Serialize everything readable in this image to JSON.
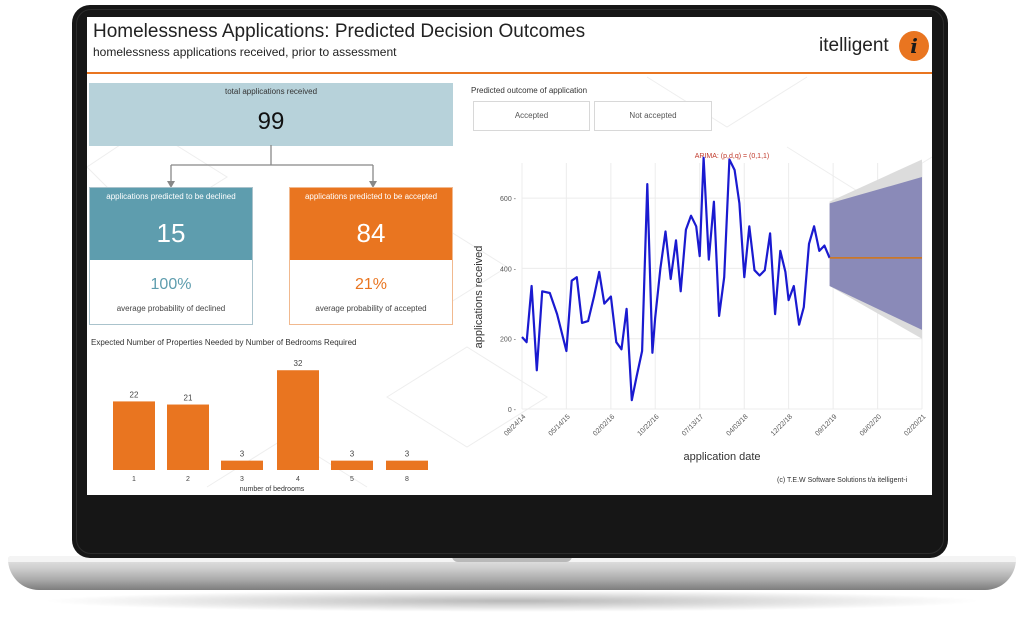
{
  "header": {
    "title": "Homelessness Applications: Predicted Decision Outcomes",
    "subtitle": "homelessness applications received, prior to assessment",
    "logo_text": "itelligent",
    "logo_glyph": "i"
  },
  "colors": {
    "accent": "#e97520",
    "teal": "#5e9dae",
    "light_teal": "#b7d2da",
    "line": "#1a1ad0",
    "forecast_band": "#8a8ab8"
  },
  "summary": {
    "total_label": "total applications received",
    "total_value": "99",
    "declined": {
      "label": "applications predicted to be declined",
      "value": "15",
      "pct": "100%",
      "pct_label": "average probability of declined"
    },
    "accepted": {
      "label": "applications predicted to be accepted",
      "value": "84",
      "pct": "21%",
      "pct_label": "average probability of accepted"
    }
  },
  "filter": {
    "title": "Predicted outcome of application",
    "options": [
      "Accepted",
      "Not accepted"
    ]
  },
  "footer": "(c) T.E.W Software Solutions t/a itelligent-i",
  "chart_data": [
    {
      "type": "bar",
      "title": "Expected Number of Properties Needed by Number of Bedrooms Required",
      "xlabel": "number of bedrooms",
      "categories": [
        "1",
        "2",
        "3",
        "4",
        "5",
        "8"
      ],
      "values": [
        22,
        21,
        3,
        32,
        3,
        3
      ],
      "ylim": [
        0,
        34
      ],
      "bar_color": "#e97520"
    },
    {
      "type": "line",
      "title": "ARIMA: (p,d,q) = (0,1,1)",
      "xlabel": "application date",
      "ylabel": "applications received",
      "x_ticks": [
        "08/24/14",
        "05/14/15",
        "02/02/16",
        "10/22/16",
        "07/13/17",
        "04/03/18",
        "12/22/18",
        "09/12/19",
        "06/02/20",
        "02/20/21"
      ],
      "y_ticks": [
        0,
        200,
        400,
        600
      ],
      "ylim": [
        0,
        700
      ],
      "xlim": [
        "2014-08-24",
        "2021-02-20"
      ],
      "grid": true,
      "series": [
        {
          "values": [
            [
              "2014-08-24",
              205
            ],
            [
              "2014-09-20",
              190
            ],
            [
              "2014-10-20",
              350
            ],
            [
              "2014-11-20",
              110
            ],
            [
              "2014-12-22",
              335
            ],
            [
              "2015-02-05",
              330
            ],
            [
              "2015-03-20",
              270
            ],
            [
              "2015-05-14",
              165
            ],
            [
              "2015-06-15",
              365
            ],
            [
              "2015-07-15",
              375
            ],
            [
              "2015-08-15",
              245
            ],
            [
              "2015-09-20",
              250
            ],
            [
              "2015-10-25",
              320
            ],
            [
              "2015-11-25",
              390
            ],
            [
              "2015-12-25",
              300
            ],
            [
              "2016-02-02",
              320
            ],
            [
              "2016-03-05",
              190
            ],
            [
              "2016-04-05",
              170
            ],
            [
              "2016-05-05",
              285
            ],
            [
              "2016-06-05",
              25
            ],
            [
              "2016-07-05",
              95
            ],
            [
              "2016-08-05",
              165
            ],
            [
              "2016-09-05",
              640
            ],
            [
              "2016-10-05",
              160
            ],
            [
              "2016-10-22",
              260
            ],
            [
              "2016-11-22",
              400
            ],
            [
              "2016-12-22",
              505
            ],
            [
              "2017-01-22",
              370
            ],
            [
              "2017-02-22",
              480
            ],
            [
              "2017-03-22",
              335
            ],
            [
              "2017-04-22",
              510
            ],
            [
              "2017-05-22",
              550
            ],
            [
              "2017-06-22",
              520
            ],
            [
              "2017-07-13",
              435
            ],
            [
              "2017-08-05",
              715
            ],
            [
              "2017-09-05",
              425
            ],
            [
              "2017-10-05",
              590
            ],
            [
              "2017-11-05",
              265
            ],
            [
              "2017-12-05",
              375
            ],
            [
              "2018-01-05",
              710
            ],
            [
              "2018-02-05",
              680
            ],
            [
              "2018-03-05",
              585
            ],
            [
              "2018-04-03",
              375
            ],
            [
              "2018-05-03",
              520
            ],
            [
              "2018-06-03",
              395
            ],
            [
              "2018-07-03",
              380
            ],
            [
              "2018-08-03",
              395
            ],
            [
              "2018-09-03",
              500
            ],
            [
              "2018-10-03",
              270
            ],
            [
              "2018-11-03",
              450
            ],
            [
              "2018-12-03",
              390
            ],
            [
              "2018-12-22",
              310
            ],
            [
              "2019-01-22",
              350
            ],
            [
              "2019-02-22",
              240
            ],
            [
              "2019-03-22",
              290
            ],
            [
              "2019-04-22",
              470
            ],
            [
              "2019-05-22",
              520
            ],
            [
              "2019-06-22",
              450
            ],
            [
              "2019-07-22",
              465
            ],
            [
              "2019-08-22",
              430
            ]
          ]
        },
        {
          "values": [
            [
              "2019-08-22",
              430
            ],
            [
              "2021-02-20",
              430
            ]
          ]
        }
      ],
      "forecast_band_outer": {
        "x_start": "2019-08-22",
        "x_end": "2021-02-20",
        "lower_start": 350,
        "lower_end": 200,
        "upper_start": 590,
        "upper_end": 710
      },
      "forecast_band_inner": {
        "x_start": "2019-08-22",
        "x_end": "2021-02-20",
        "lower_start": 350,
        "lower_end": 225,
        "upper_start": 585,
        "upper_end": 660
      }
    }
  ]
}
